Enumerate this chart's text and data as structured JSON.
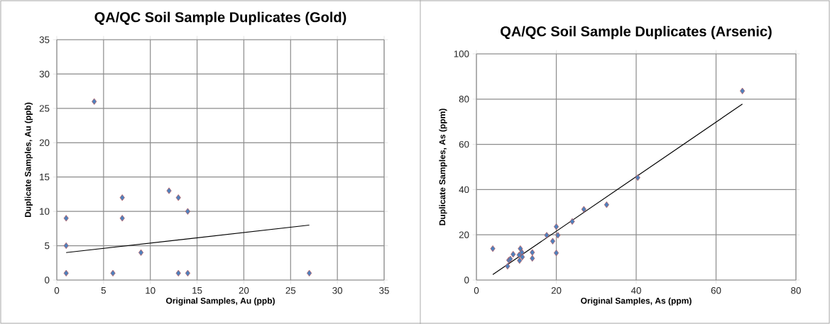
{
  "chart_data": [
    {
      "type": "scatter",
      "title": "QA/QC Soil Sample Duplicates (Gold)",
      "xlabel": "Original Samples, Au (ppb)",
      "ylabel": "Duplicate Samples, Au (ppb)",
      "xlim": [
        0,
        35
      ],
      "ylim": [
        0,
        35
      ],
      "xticks": [
        0,
        5,
        10,
        15,
        20,
        25,
        30,
        35
      ],
      "yticks": [
        0,
        5,
        10,
        15,
        20,
        25,
        30,
        35
      ],
      "grid": true,
      "marker": "diamond",
      "series": [
        {
          "color": "#4f81bd",
          "x": [
            1,
            1,
            1,
            4,
            6,
            7,
            7,
            9,
            12,
            13,
            13,
            14,
            14,
            27
          ],
          "values": [
            1,
            5,
            9,
            26,
            1,
            9,
            12,
            4,
            13,
            12,
            1,
            10,
            1,
            1
          ]
        },
        {
          "type": "line",
          "color": "#000000",
          "marker": "none",
          "x": [
            1,
            27
          ],
          "values": [
            4,
            8
          ]
        }
      ]
    },
    {
      "type": "scatter",
      "title": "QA/QC Soil Sample Duplicates (Arsenic)",
      "xlabel": "Original Samples, As (ppm)",
      "ylabel": "Duplicate Samples, As (ppm)",
      "xlim": [
        0,
        80
      ],
      "ylim": [
        0,
        100
      ],
      "xticks": [
        0,
        20,
        40,
        60,
        80
      ],
      "yticks": [
        0,
        20,
        40,
        60,
        80,
        100
      ],
      "grid": true,
      "marker": "diamond",
      "series": [
        {
          "color": "#4f81bd",
          "x": [
            4.1,
            7.8,
            8.1,
            8.5,
            9.2,
            10.7,
            10.8,
            11.0,
            11.4,
            11.5,
            14.0,
            14.0,
            17.6,
            19.1,
            20.0,
            20.0,
            20.4,
            24.0,
            26.9,
            32.6,
            40.4,
            66.6
          ],
          "values": [
            13.9,
            6.1,
            8.8,
            9.3,
            11.4,
            11.1,
            8.6,
            13.9,
            12.2,
            10.2,
            12.2,
            9.6,
            19.8,
            17.2,
            23.6,
            12.0,
            19.8,
            25.9,
            31.3,
            33.3,
            45.3,
            83.6
          ]
        },
        {
          "type": "line",
          "color": "#000000",
          "marker": "none",
          "x": [
            4.1,
            66.6
          ],
          "values": [
            2.4,
            77.8
          ]
        }
      ]
    }
  ]
}
